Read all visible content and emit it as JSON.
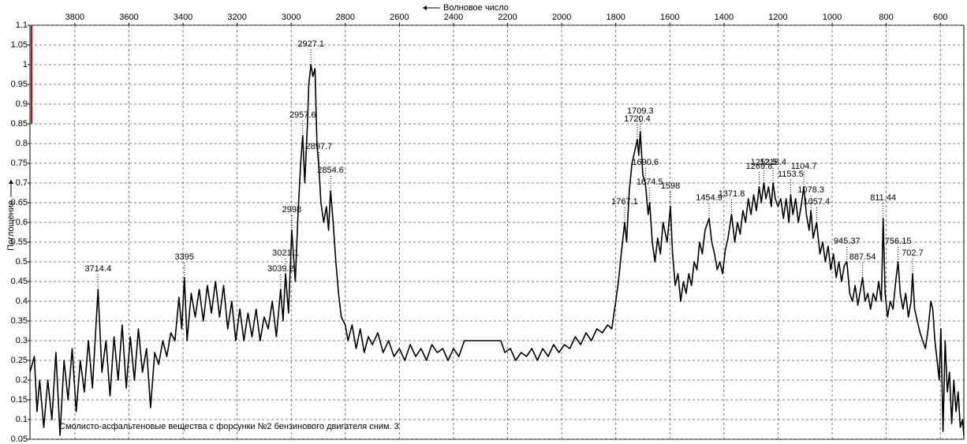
{
  "chart_data": {
    "type": "line",
    "x_label": "Волновое число",
    "y_label": "Поглощение",
    "annotation": "Смолисто-асфальтеновые вещества с форсунки  №2 бензинового двигателя сним. 3",
    "color": "#000000",
    "grid": true,
    "xlim": [
      3966,
      513
    ],
    "ylim": [
      0.05,
      1.1
    ],
    "xticks": [
      3800,
      3600,
      3400,
      3200,
      3000,
      2800,
      2600,
      2400,
      2200,
      2000,
      1800,
      1600,
      1400,
      1200,
      1000,
      800,
      600
    ],
    "yticks": [
      0.05,
      0.1,
      0.15,
      0.2,
      0.25,
      0.3,
      0.35,
      0.4,
      0.45,
      0.5,
      0.55,
      0.6,
      0.65,
      0.7,
      0.75,
      0.8,
      0.85,
      0.9,
      0.95,
      1,
      1.05,
      1.1
    ],
    "x": [
      3966,
      3950,
      3940,
      3930,
      3915,
      3900,
      3885,
      3870,
      3855,
      3840,
      3825,
      3810,
      3795,
      3780,
      3765,
      3750,
      3735,
      3714.4,
      3700,
      3685,
      3670,
      3655,
      3640,
      3625,
      3610,
      3595,
      3580,
      3565,
      3550,
      3535,
      3520,
      3505,
      3490,
      3475,
      3460,
      3445,
      3430,
      3415,
      3405,
      3395,
      3385,
      3370,
      3355,
      3340,
      3325,
      3310,
      3295,
      3280,
      3265,
      3250,
      3235,
      3220,
      3205,
      3190,
      3175,
      3160,
      3145,
      3130,
      3115,
      3100,
      3085,
      3070,
      3055,
      3039.2,
      3030,
      3021.1,
      3010,
      2998,
      2985,
      2975,
      2965,
      2957.6,
      2950,
      2940,
      2935,
      2927.1,
      2920,
      2912,
      2905,
      2897.7,
      2890,
      2880,
      2870,
      2862,
      2854.6,
      2845,
      2835,
      2825,
      2815,
      2800,
      2790,
      2775,
      2760,
      2745,
      2730,
      2715,
      2700,
      2680,
      2660,
      2640,
      2620,
      2600,
      2580,
      2560,
      2540,
      2520,
      2500,
      2480,
      2460,
      2440,
      2420,
      2400,
      2380,
      2360,
      2340,
      2300,
      2260,
      2225,
      2210,
      2190,
      2170,
      2150,
      2130,
      2110,
      2090,
      2070,
      2050,
      2030,
      2010,
      1990,
      1970,
      1950,
      1930,
      1910,
      1890,
      1870,
      1850,
      1830,
      1815,
      1800,
      1790,
      1780,
      1767.1,
      1760,
      1750,
      1740,
      1730,
      1720.4,
      1715,
      1709.3,
      1700,
      1690.6,
      1680,
      1674.5,
      1665,
      1655,
      1645,
      1635,
      1625,
      1610,
      1598,
      1590,
      1580,
      1570,
      1560,
      1550,
      1540,
      1530,
      1520,
      1510,
      1500,
      1490,
      1480,
      1470,
      1454.9,
      1445,
      1435,
      1425,
      1415,
      1405,
      1395,
      1385,
      1371.8,
      1360,
      1350,
      1340,
      1330,
      1320,
      1310,
      1300,
      1290,
      1280,
      1269.8,
      1262,
      1252.5,
      1245,
      1235,
      1225,
      1218.4,
      1210,
      1200,
      1190,
      1180,
      1170,
      1160,
      1153.5,
      1145,
      1135,
      1125,
      1115,
      1104.7,
      1095,
      1085,
      1078.3,
      1070,
      1057.4,
      1045,
      1035,
      1025,
      1015,
      1005,
      995,
      985,
      975,
      965,
      955,
      945.37,
      935,
      925,
      915,
      905,
      895,
      887.54,
      878,
      868,
      858,
      848,
      838,
      828,
      818,
      811.44,
      804,
      795,
      785,
      775,
      765,
      756.15,
      748,
      738,
      728,
      718,
      708,
      702.7,
      695,
      685,
      675,
      665,
      655,
      645,
      635,
      628,
      620,
      612,
      604,
      598,
      590,
      582,
      574,
      566,
      558,
      550,
      542,
      534,
      526,
      518,
      513
    ],
    "values": [
      0.22,
      0.26,
      0.12,
      0.2,
      0.08,
      0.2,
      0.1,
      0.27,
      0.06,
      0.25,
      0.15,
      0.28,
      0.12,
      0.25,
      0.17,
      0.3,
      0.18,
      0.43,
      0.22,
      0.3,
      0.16,
      0.31,
      0.2,
      0.34,
      0.18,
      0.31,
      0.2,
      0.33,
      0.22,
      0.28,
      0.13,
      0.27,
      0.24,
      0.3,
      0.26,
      0.32,
      0.3,
      0.41,
      0.33,
      0.46,
      0.3,
      0.42,
      0.36,
      0.43,
      0.35,
      0.44,
      0.37,
      0.45,
      0.36,
      0.44,
      0.33,
      0.4,
      0.3,
      0.38,
      0.3,
      0.37,
      0.31,
      0.38,
      0.3,
      0.36,
      0.33,
      0.4,
      0.31,
      0.43,
      0.35,
      0.47,
      0.37,
      0.58,
      0.45,
      0.62,
      0.75,
      0.82,
      0.7,
      0.85,
      0.95,
      1.0,
      0.97,
      0.99,
      0.8,
      0.74,
      0.65,
      0.6,
      0.64,
      0.58,
      0.68,
      0.6,
      0.5,
      0.42,
      0.36,
      0.34,
      0.3,
      0.34,
      0.28,
      0.33,
      0.27,
      0.31,
      0.29,
      0.32,
      0.27,
      0.3,
      0.26,
      0.28,
      0.25,
      0.29,
      0.26,
      0.28,
      0.25,
      0.29,
      0.27,
      0.28,
      0.25,
      0.28,
      0.26,
      0.3,
      0.3,
      0.3,
      0.3,
      0.3,
      0.27,
      0.28,
      0.25,
      0.27,
      0.26,
      0.28,
      0.25,
      0.28,
      0.26,
      0.29,
      0.27,
      0.29,
      0.28,
      0.31,
      0.29,
      0.32,
      0.3,
      0.33,
      0.32,
      0.34,
      0.33,
      0.4,
      0.45,
      0.52,
      0.6,
      0.55,
      0.68,
      0.75,
      0.78,
      0.81,
      0.77,
      0.83,
      0.72,
      0.7,
      0.62,
      0.65,
      0.55,
      0.5,
      0.56,
      0.52,
      0.6,
      0.55,
      0.64,
      0.52,
      0.44,
      0.47,
      0.4,
      0.45,
      0.42,
      0.47,
      0.44,
      0.5,
      0.48,
      0.55,
      0.52,
      0.58,
      0.61,
      0.55,
      0.52,
      0.48,
      0.5,
      0.47,
      0.53,
      0.56,
      0.62,
      0.55,
      0.6,
      0.57,
      0.63,
      0.6,
      0.66,
      0.62,
      0.67,
      0.63,
      0.69,
      0.65,
      0.7,
      0.66,
      0.69,
      0.64,
      0.7,
      0.66,
      0.64,
      0.66,
      0.61,
      0.66,
      0.6,
      0.67,
      0.62,
      0.66,
      0.6,
      0.64,
      0.69,
      0.62,
      0.58,
      0.63,
      0.56,
      0.6,
      0.52,
      0.55,
      0.5,
      0.54,
      0.48,
      0.52,
      0.46,
      0.5,
      0.45,
      0.49,
      0.5,
      0.42,
      0.4,
      0.44,
      0.39,
      0.43,
      0.46,
      0.4,
      0.42,
      0.38,
      0.42,
      0.4,
      0.45,
      0.4,
      0.61,
      0.42,
      0.36,
      0.4,
      0.38,
      0.45,
      0.5,
      0.42,
      0.38,
      0.42,
      0.36,
      0.4,
      0.47,
      0.38,
      0.35,
      0.32,
      0.3,
      0.28,
      0.33,
      0.4,
      0.38,
      0.3,
      0.25,
      0.2,
      0.33,
      0.07,
      0.3,
      0.17,
      0.22,
      0.09,
      0.2,
      0.12,
      0.17,
      0.08,
      0.1,
      0.06
    ],
    "peaks": [
      {
        "x": 3714.4,
        "y": 0.43
      },
      {
        "x": 3395,
        "y": 0.46
      },
      {
        "x": 3039.2,
        "y": 0.43
      },
      {
        "x": 3021.1,
        "y": 0.47
      },
      {
        "x": 2998,
        "y": 0.58
      },
      {
        "x": 2957.6,
        "y": 0.82
      },
      {
        "x": 2927.1,
        "y": 1.0
      },
      {
        "x": 2897.7,
        "y": 0.74
      },
      {
        "x": 2854.6,
        "y": 0.68
      },
      {
        "x": 1767.1,
        "y": 0.6
      },
      {
        "x": 1720.4,
        "y": 0.81
      },
      {
        "x": 1709.3,
        "y": 0.83
      },
      {
        "x": 1690.6,
        "y": 0.7
      },
      {
        "x": 1674.5,
        "y": 0.65
      },
      {
        "x": 1598,
        "y": 0.64
      },
      {
        "x": 1454.9,
        "y": 0.61
      },
      {
        "x": 1371.8,
        "y": 0.62
      },
      {
        "x": 1269.8,
        "y": 0.69
      },
      {
        "x": 1252.5,
        "y": 0.7
      },
      {
        "x": 1218.4,
        "y": 0.7
      },
      {
        "x": 1153.5,
        "y": 0.67
      },
      {
        "x": 1104.7,
        "y": 0.69
      },
      {
        "x": 1078.3,
        "y": 0.63
      },
      {
        "x": 1057.4,
        "y": 0.6
      },
      {
        "x": 945.37,
        "y": 0.5
      },
      {
        "x": 887.54,
        "y": 0.46
      },
      {
        "x": 811.44,
        "y": 0.61
      },
      {
        "x": 756.15,
        "y": 0.5
      },
      {
        "x": 702.7,
        "y": 0.47
      }
    ]
  }
}
